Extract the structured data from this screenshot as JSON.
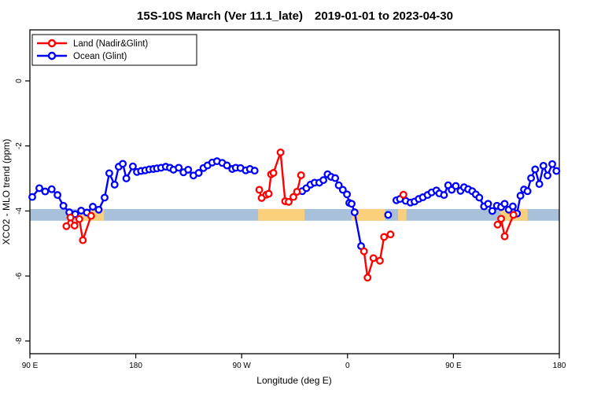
{
  "title": "15S-10S March (Ver 11.1_late)  2019-01-01 to 2023-04-30",
  "legend": {
    "items": [
      {
        "label": "Land (Nadir&Glint)",
        "color": "#ff0000"
      },
      {
        "label": "Ocean (Glint)",
        "color": "#0000ff"
      }
    ]
  },
  "chart_data": {
    "type": "line",
    "title": "15S-10S March (Ver 11.1_late)  2019-01-01 to 2023-04-30",
    "xlabel": "Longitude (deg E)",
    "ylabel": "XCO2 - MLO trend (ppm)",
    "xlim": [
      90,
      540
    ],
    "ylim": [
      -8.39,
      1.57
    ],
    "x_ticks": [
      {
        "lon": 90,
        "label": "90 E"
      },
      {
        "lon": 180,
        "label": "180"
      },
      {
        "lon": 270,
        "label": "90 W"
      },
      {
        "lon": 360,
        "label": "0"
      },
      {
        "lon": 450,
        "label": "90 E"
      },
      {
        "lon": 540,
        "label": "180"
      }
    ],
    "y_ticks": [
      0,
      -2,
      -4,
      -6,
      -8
    ],
    "grid": false,
    "legend_position": "top-left",
    "band": {
      "description": "horizontal reference band; tan segments mark land longitudes",
      "y_range": [
        -3.94,
        -4.3
      ],
      "base_color": "#a8c0da",
      "highlight_color": "#fbd07c",
      "highlight_segments": [
        [
          130,
          153
        ],
        [
          284,
          323.5
        ],
        [
          363.5,
          392
        ],
        [
          403,
          410
        ],
        [
          490,
          513
        ]
      ]
    },
    "series": [
      {
        "name": "Ocean (Glint)",
        "color": "#0000ff",
        "segments": [
          [
            [
              92,
              -3.57
            ],
            [
              98,
              -3.3
            ],
            [
              103,
              -3.4
            ],
            [
              108.5,
              -3.33
            ],
            [
              113.5,
              -3.51
            ],
            [
              118.5,
              -3.84
            ],
            [
              123.5,
              -4.04
            ],
            [
              128.5,
              -4.1
            ],
            [
              133.5,
              -3.99
            ],
            [
              138.5,
              -4.05
            ],
            [
              143.5,
              -3.87
            ],
            [
              148.5,
              -3.96
            ],
            [
              153.5,
              -3.59
            ],
            [
              157.5,
              -2.84
            ],
            [
              162,
              -3.19
            ],
            [
              165.5,
              -2.64
            ],
            [
              169,
              -2.55
            ],
            [
              172,
              -3.0
            ],
            [
              177.5,
              -2.63
            ],
            [
              181,
              -2.8
            ],
            [
              184.5,
              -2.77
            ],
            [
              188,
              -2.75
            ],
            [
              191.5,
              -2.72
            ],
            [
              195,
              -2.71
            ],
            [
              198,
              -2.69
            ],
            [
              201.5,
              -2.67
            ],
            [
              205.5,
              -2.64
            ],
            [
              209,
              -2.67
            ],
            [
              212,
              -2.73
            ],
            [
              216.5,
              -2.67
            ],
            [
              220.5,
              -2.81
            ],
            [
              224.5,
              -2.73
            ],
            [
              229,
              -2.91
            ],
            [
              233.5,
              -2.83
            ],
            [
              237.5,
              -2.68
            ],
            [
              241,
              -2.6
            ],
            [
              245,
              -2.51
            ],
            [
              249,
              -2.47
            ],
            [
              253.5,
              -2.52
            ],
            [
              257.5,
              -2.6
            ],
            [
              262,
              -2.71
            ],
            [
              265,
              -2.67
            ],
            [
              269,
              -2.68
            ],
            [
              273.5,
              -2.75
            ],
            [
              277,
              -2.71
            ],
            [
              281,
              -2.76
            ]
          ],
          [
            [
              321.5,
              -3.39
            ],
            [
              325,
              -3.3
            ],
            [
              328.5,
              -3.19
            ],
            [
              332,
              -3.13
            ],
            [
              336,
              -3.13
            ],
            [
              339.5,
              -3.05
            ],
            [
              343,
              -2.87
            ],
            [
              346,
              -2.95
            ],
            [
              349.5,
              -2.99
            ],
            [
              352.5,
              -3.21
            ],
            [
              356,
              -3.35
            ],
            [
              359.5,
              -3.49
            ],
            [
              361.5,
              -3.75
            ],
            [
              363.5,
              -3.78
            ],
            [
              366,
              -4.04
            ],
            [
              371.5,
              -5.08
            ]
          ],
          [
            [
              394.5,
              -4.12
            ]
          ],
          [
            [
              401.5,
              -3.67
            ],
            [
              404.5,
              -3.63
            ],
            [
              409.5,
              -3.69
            ],
            [
              413.5,
              -3.74
            ],
            [
              417,
              -3.71
            ],
            [
              420.5,
              -3.63
            ],
            [
              424,
              -3.58
            ],
            [
              428,
              -3.51
            ],
            [
              431.5,
              -3.43
            ],
            [
              435.5,
              -3.37
            ],
            [
              438,
              -3.46
            ],
            [
              442,
              -3.51
            ],
            [
              445.5,
              -3.21
            ],
            [
              448.5,
              -3.35
            ],
            [
              452,
              -3.23
            ],
            [
              456,
              -3.38
            ],
            [
              459,
              -3.27
            ],
            [
              462.5,
              -3.33
            ],
            [
              466,
              -3.39
            ],
            [
              469,
              -3.49
            ],
            [
              472,
              -3.59
            ],
            [
              476,
              -3.86
            ],
            [
              479.5,
              -3.78
            ],
            [
              483,
              -4.0
            ],
            [
              487,
              -3.84
            ],
            [
              490.5,
              -3.88
            ],
            [
              493.5,
              -3.78
            ],
            [
              497,
              -3.96
            ],
            [
              500.5,
              -3.86
            ],
            [
              504,
              -4.08
            ],
            [
              507,
              -3.53
            ],
            [
              510,
              -3.34
            ],
            [
              513,
              -3.39
            ],
            [
              516,
              -2.99
            ],
            [
              519.5,
              -2.72
            ],
            [
              523,
              -3.17
            ],
            [
              526.5,
              -2.61
            ],
            [
              530,
              -2.91
            ],
            [
              534,
              -2.56
            ],
            [
              537.5,
              -2.77
            ]
          ]
        ]
      },
      {
        "name": "Land (Nadir&Glint)",
        "color": "#ff0000",
        "segments": [
          [
            [
              121,
              -4.47
            ],
            [
              124.5,
              -4.2
            ],
            [
              128,
              -4.45
            ],
            [
              132,
              -4.25
            ],
            [
              135,
              -4.9
            ],
            [
              142,
              -4.15
            ]
          ],
          [
            [
              285,
              -3.35
            ],
            [
              287,
              -3.6
            ],
            [
              291,
              -3.5
            ],
            [
              293,
              -3.47
            ],
            [
              295,
              -2.87
            ],
            [
              297,
              -2.83
            ],
            [
              303,
              -2.2
            ],
            [
              307,
              -3.7
            ],
            [
              310,
              -3.72
            ],
            [
              314,
              -3.57
            ],
            [
              317,
              -3.41
            ],
            [
              320.5,
              -2.9
            ]
          ],
          [
            [
              374,
              -5.24
            ],
            [
              377,
              -6.05
            ],
            [
              382,
              -5.45
            ],
            [
              387.5,
              -5.53
            ],
            [
              391,
              -4.8
            ],
            [
              396.5,
              -4.72
            ]
          ],
          [
            [
              407.5,
              -3.5
            ]
          ],
          [
            [
              487.5,
              -4.42
            ],
            [
              490.5,
              -4.24
            ],
            [
              493.5,
              -4.78
            ],
            [
              501,
              -4.12
            ]
          ]
        ]
      }
    ]
  }
}
